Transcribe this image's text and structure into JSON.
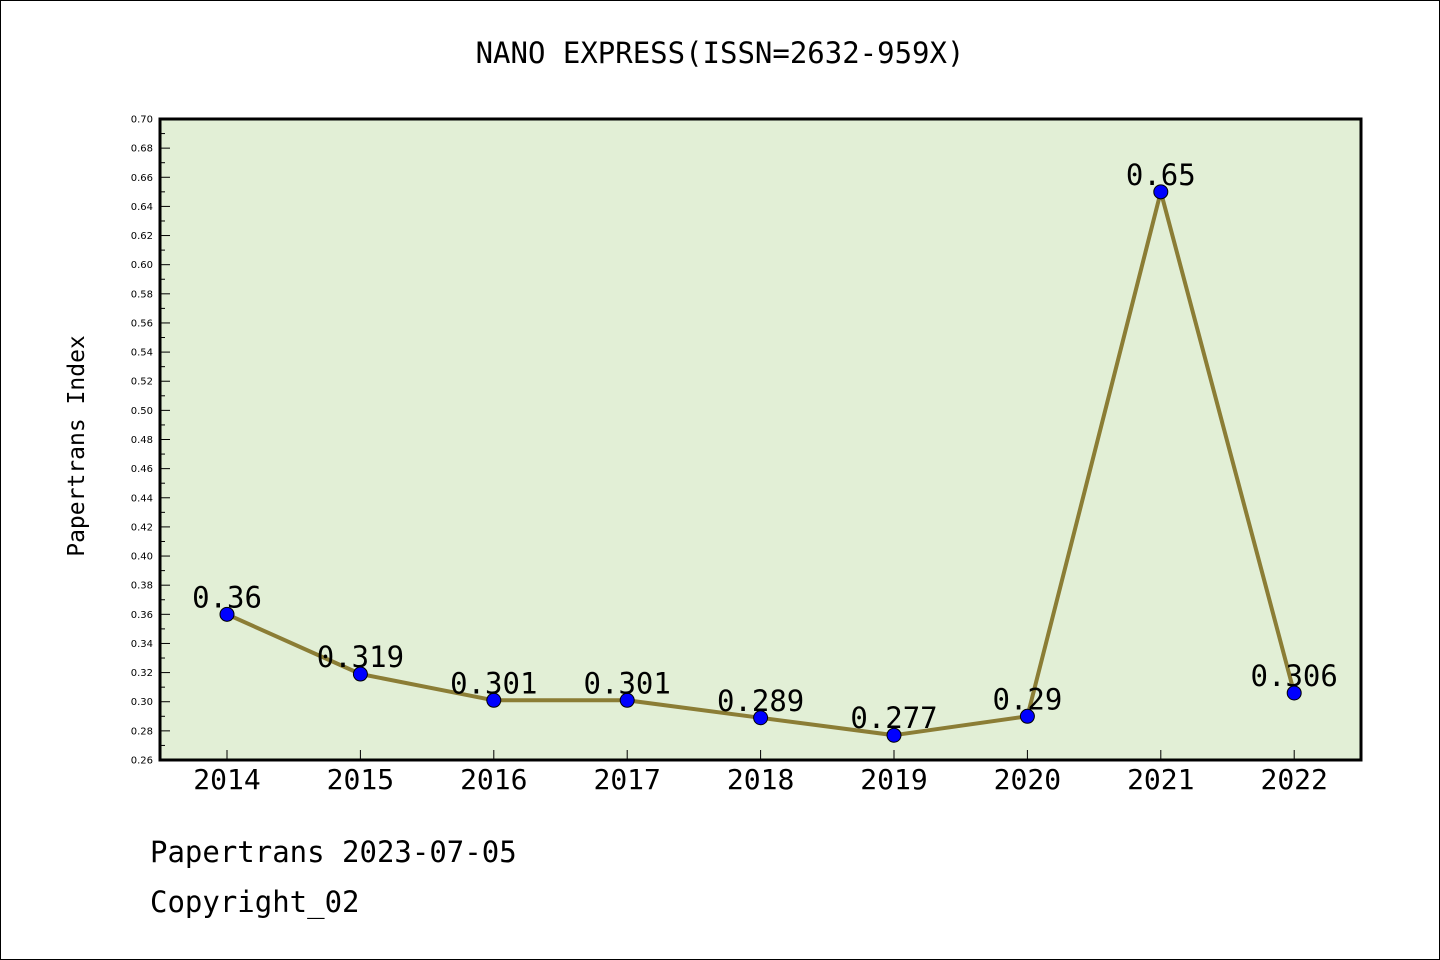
{
  "title": "NANO EXPRESS(ISSN=2632-959X)",
  "footer": {
    "line1": "Papertrans 2023-07-05",
    "line2": "Copyright_02"
  },
  "colors": {
    "plot_background": "#e2efd6",
    "line": "#8b7d35",
    "marker": "#0000ff",
    "border": "#000000"
  },
  "chart_data": {
    "type": "line",
    "title": "NANO EXPRESS(ISSN=2632-959X)",
    "xlabel": "",
    "ylabel": "Papertrans Index",
    "categories": [
      "2014",
      "2015",
      "2016",
      "2017",
      "2018",
      "2019",
      "2020",
      "2021",
      "2022"
    ],
    "values": [
      0.36,
      0.319,
      0.301,
      0.301,
      0.289,
      0.277,
      0.29,
      0.65,
      0.306
    ],
    "value_labels": [
      "0.36",
      "0.319",
      "0.301",
      "0.301",
      "0.289",
      "0.277",
      "0.29",
      "0.65",
      "0.306"
    ],
    "ylim": [
      0.26,
      0.7
    ],
    "yticks": [
      "0.26",
      "0.28",
      "0.30",
      "0.32",
      "0.34",
      "0.36",
      "0.38",
      "0.40",
      "0.42",
      "0.44",
      "0.46",
      "0.48",
      "0.50",
      "0.52",
      "0.54",
      "0.56",
      "0.58",
      "0.60",
      "0.62",
      "0.64",
      "0.66",
      "0.68",
      "0.70"
    ],
    "grid": false,
    "legend": "none"
  }
}
